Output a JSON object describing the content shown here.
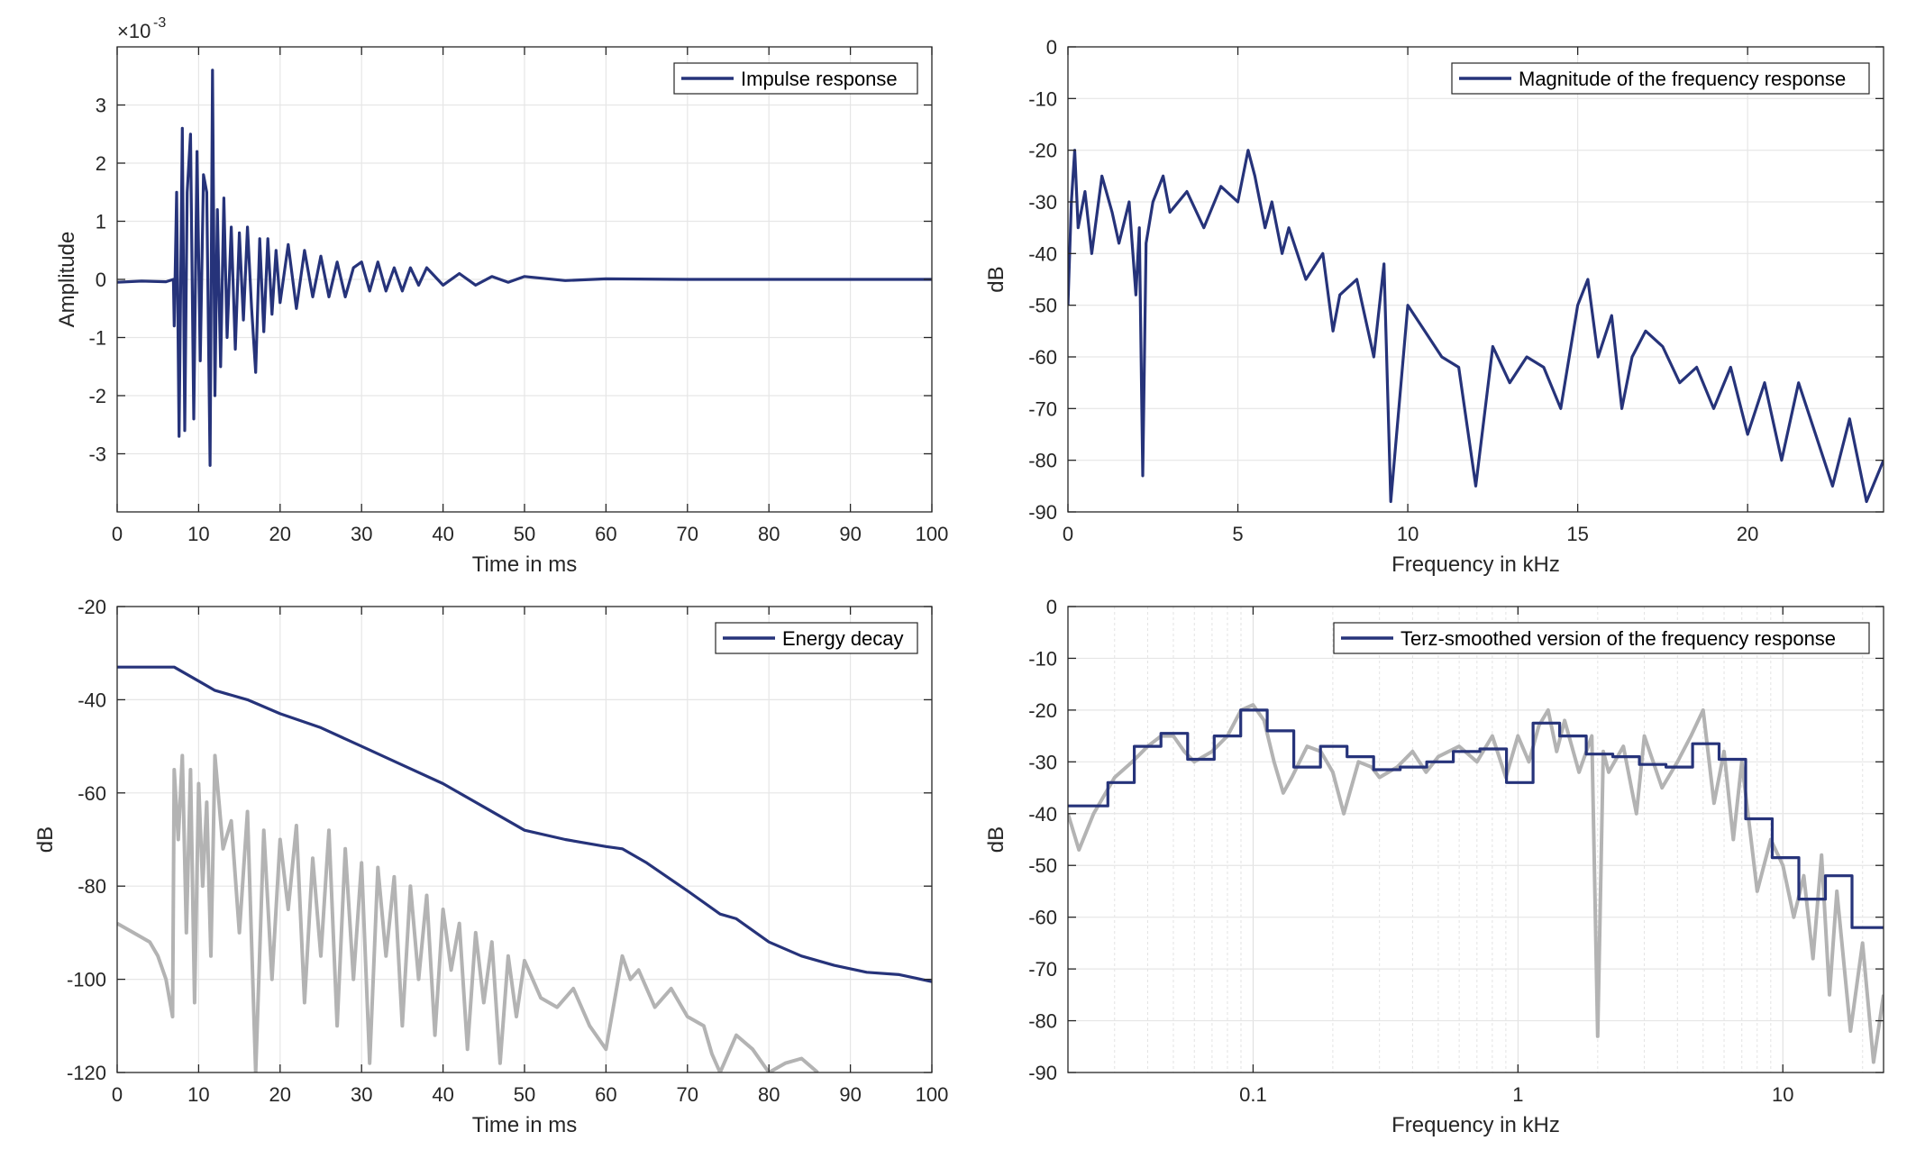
{
  "colors": {
    "series": "#26337a",
    "gray": "#b3b3b3",
    "grid": "#e6e6e6",
    "axis": "#262626"
  },
  "chart_data": [
    {
      "type": "line",
      "xlabel": "Time in ms",
      "ylabel": "Amplitude",
      "exponent_label": "×10",
      "exponent_power": "-3",
      "xlim": [
        0,
        100
      ],
      "ylim": [
        -0.004,
        0.004
      ],
      "xticks": [
        0,
        10,
        20,
        30,
        40,
        50,
        60,
        70,
        80,
        90,
        100
      ],
      "xtick_labels": [
        "0",
        "10",
        "20",
        "30",
        "40",
        "50",
        "60",
        "70",
        "80",
        "90",
        "100"
      ],
      "yticks": [
        -0.003,
        -0.002,
        -0.001,
        0,
        0.001,
        0.002,
        0.003
      ],
      "ytick_labels": [
        "-3",
        "-2",
        "-1",
        "0",
        "1",
        "2",
        "3"
      ],
      "grid": true,
      "legend": "top-right",
      "series": [
        {
          "name": "Impulse response",
          "color": "#26337a",
          "x": [
            0,
            3,
            6,
            6.9,
            7,
            7.3,
            7.6,
            8.0,
            8.3,
            8.6,
            9.0,
            9.4,
            9.8,
            10.2,
            10.6,
            11.0,
            11.4,
            11.7,
            12.0,
            12.3,
            12.7,
            13.1,
            13.5,
            14.0,
            14.5,
            15.0,
            15.5,
            16.0,
            16.5,
            17.0,
            17.5,
            18.0,
            18.5,
            19.0,
            19.5,
            20.0,
            21,
            22,
            23,
            24,
            25,
            26,
            27,
            28,
            29,
            30,
            31,
            32,
            33,
            34,
            35,
            36,
            37,
            38,
            40,
            42,
            44,
            46,
            48,
            50,
            55,
            60,
            70,
            80,
            90,
            100
          ],
          "y": [
            -5e-05,
            -3e-05,
            -4e-05,
            0,
            -0.0008,
            0.0015,
            -0.0027,
            0.0026,
            -0.0026,
            0.0015,
            0.0025,
            -0.0024,
            0.0022,
            -0.0014,
            0.0018,
            0.0015,
            -0.0032,
            0.0036,
            -0.002,
            0.0012,
            -0.0015,
            0.0014,
            -0.001,
            0.0009,
            -0.0012,
            0.0008,
            -0.0007,
            0.0009,
            -0.0005,
            -0.0016,
            0.0007,
            -0.0009,
            0.0007,
            -0.0006,
            0.0005,
            -0.0004,
            0.0006,
            -0.0005,
            0.0005,
            -0.0003,
            0.0004,
            -0.0003,
            0.0003,
            -0.0003,
            0.0002,
            0.0003,
            -0.0002,
            0.0003,
            -0.0002,
            0.0002,
            -0.0002,
            0.0002,
            -0.0001,
            0.0002,
            -0.0001,
            0.0001,
            -0.0001,
            5e-05,
            -5e-05,
            5e-05,
            -2e-05,
            1e-05,
            0,
            0,
            0,
            0
          ]
        }
      ]
    },
    {
      "type": "line",
      "xlabel": "Frequency in kHz",
      "ylabel": "dB",
      "xlim": [
        0,
        24
      ],
      "ylim": [
        -90,
        0
      ],
      "xticks": [
        0,
        5,
        10,
        15,
        20
      ],
      "xtick_labels": [
        "0",
        "5",
        "10",
        "15",
        "20"
      ],
      "yticks": [
        0,
        -10,
        -20,
        -30,
        -40,
        -50,
        -60,
        -70,
        -80,
        -90
      ],
      "ytick_labels": [
        "0",
        "-10",
        "-20",
        "-30",
        "-40",
        "-50",
        "-60",
        "-70",
        "-80",
        "-90"
      ],
      "grid": true,
      "legend": "top-right",
      "series": [
        {
          "name": "Magnitude of the frequency response",
          "color": "#26337a",
          "x": [
            0,
            0.1,
            0.2,
            0.3,
            0.5,
            0.7,
            1.0,
            1.3,
            1.5,
            1.8,
            2.0,
            2.1,
            2.2,
            2.3,
            2.5,
            2.8,
            3.0,
            3.5,
            4.0,
            4.5,
            5.0,
            5.3,
            5.5,
            5.8,
            6.0,
            6.3,
            6.5,
            7.0,
            7.5,
            7.8,
            8.0,
            8.5,
            9.0,
            9.3,
            9.5,
            10.0,
            10.5,
            11.0,
            11.5,
            12.0,
            12.5,
            13.0,
            13.5,
            14.0,
            14.5,
            15.0,
            15.3,
            15.6,
            16.0,
            16.3,
            16.6,
            17.0,
            17.5,
            18.0,
            18.5,
            19.0,
            19.5,
            20.0,
            20.5,
            21.0,
            21.5,
            22.0,
            22.5,
            23.0,
            23.5,
            24.0
          ],
          "y": [
            -50,
            -30,
            -20,
            -35,
            -28,
            -40,
            -25,
            -32,
            -38,
            -30,
            -48,
            -35,
            -83,
            -38,
            -30,
            -25,
            -32,
            -28,
            -35,
            -27,
            -30,
            -20,
            -25,
            -35,
            -30,
            -40,
            -35,
            -45,
            -40,
            -55,
            -48,
            -45,
            -60,
            -42,
            -88,
            -50,
            -55,
            -60,
            -62,
            -85,
            -58,
            -65,
            -60,
            -62,
            -70,
            -50,
            -45,
            -60,
            -52,
            -70,
            -60,
            -55,
            -58,
            -65,
            -62,
            -70,
            -62,
            -75,
            -65,
            -80,
            -65,
            -75,
            -85,
            -72,
            -88,
            -80
          ]
        }
      ]
    },
    {
      "type": "line",
      "xlabel": "Time in ms",
      "ylabel": "dB",
      "xlim": [
        0,
        100
      ],
      "ylim": [
        -120,
        -20
      ],
      "xticks": [
        0,
        10,
        20,
        30,
        40,
        50,
        60,
        70,
        80,
        90,
        100
      ],
      "xtick_labels": [
        "0",
        "10",
        "20",
        "30",
        "40",
        "50",
        "60",
        "70",
        "80",
        "90",
        "100"
      ],
      "yticks": [
        -20,
        -40,
        -60,
        -80,
        -100,
        -120
      ],
      "ytick_labels": [
        "-20",
        "-40",
        "-60",
        "-80",
        "-100",
        "-120"
      ],
      "grid": true,
      "legend": "top-right",
      "series": [
        {
          "name": "Energy decay",
          "color": "#26337a",
          "x": [
            0,
            7,
            10,
            12,
            16,
            20,
            25,
            30,
            35,
            40,
            45,
            50,
            55,
            60,
            62,
            65,
            70,
            74,
            76,
            80,
            84,
            88,
            92,
            96,
            100
          ],
          "y": [
            -33,
            -33,
            -36,
            -38,
            -40,
            -43,
            -46,
            -50,
            -54,
            -58,
            -63,
            -68,
            -70,
            -71.5,
            -72,
            -75,
            -81,
            -86,
            -87,
            -92,
            -95,
            -97,
            -98.5,
            -99,
            -100.5
          ]
        },
        {
          "name": "",
          "color": "#b3b3b3",
          "x": [
            0,
            2,
            4,
            5,
            6,
            6.8,
            7,
            7.5,
            8,
            8.5,
            9,
            9.5,
            10,
            10.5,
            11,
            11.5,
            12,
            13,
            14,
            15,
            16,
            17,
            18,
            19,
            20,
            21,
            22,
            23,
            24,
            25,
            26,
            27,
            28,
            29,
            30,
            31,
            32,
            33,
            34,
            35,
            36,
            37,
            38,
            39,
            40,
            41,
            42,
            43,
            44,
            45,
            46,
            47,
            48,
            49,
            50,
            52,
            54,
            56,
            58,
            60,
            62,
            63,
            64,
            66,
            68,
            70,
            72,
            73,
            74,
            76,
            78,
            80,
            82,
            84,
            86
          ],
          "y": [
            -88,
            -90,
            -92,
            -95,
            -100,
            -108,
            -55,
            -70,
            -52,
            -90,
            -55,
            -105,
            -58,
            -80,
            -62,
            -95,
            -52,
            -72,
            -66,
            -90,
            -64,
            -120,
            -68,
            -100,
            -70,
            -85,
            -67,
            -105,
            -74,
            -95,
            -68,
            -110,
            -72,
            -100,
            -75,
            -118,
            -76,
            -95,
            -78,
            -110,
            -80,
            -100,
            -82,
            -112,
            -85,
            -98,
            -88,
            -115,
            -90,
            -105,
            -92,
            -118,
            -95,
            -108,
            -96,
            -104,
            -106,
            -102,
            -110,
            -115,
            -95,
            -100,
            -98,
            -106,
            -102,
            -108,
            -110,
            -116,
            -120,
            -112,
            -115,
            -120,
            -118,
            -117,
            -120
          ]
        }
      ]
    },
    {
      "type": "line",
      "xlabel": "Frequency in kHz",
      "ylabel": "dB",
      "xscale": "log",
      "xlim": [
        0.02,
        24
      ],
      "ylim": [
        -90,
        0
      ],
      "xticks": [
        0.1,
        1,
        10
      ],
      "xtick_labels": [
        "0.1",
        "1",
        "10"
      ],
      "yticks": [
        0,
        -10,
        -20,
        -30,
        -40,
        -50,
        -60,
        -70,
        -80,
        -90
      ],
      "ytick_labels": [
        "0",
        "-10",
        "-20",
        "-30",
        "-40",
        "-50",
        "-60",
        "-70",
        "-80",
        "-90"
      ],
      "grid": true,
      "legend": "top-right",
      "series": [
        {
          "name": "Terz-smoothed version of the frequency response",
          "color": "#26337a",
          "step": true,
          "x": [
            0.02,
            0.0283,
            0.0356,
            0.0449,
            0.0566,
            0.0713,
            0.0898,
            0.1131,
            0.1425,
            0.1796,
            0.2263,
            0.2851,
            0.3592,
            0.4525,
            0.5702,
            0.7184,
            0.9051,
            1.1404,
            1.4368,
            1.8102,
            2.2807,
            2.8736,
            3.6204,
            4.5613,
            5.7469,
            7.2406,
            9.1226,
            11.494,
            14.481,
            18.245,
            24
          ],
          "y": [
            -38.5,
            -34,
            -27,
            -24.5,
            -29.5,
            -25,
            -20,
            -24,
            -31,
            -27,
            -29,
            -31.5,
            -31,
            -30,
            -28,
            -27.5,
            -34,
            -22.5,
            -25,
            -28.5,
            -29,
            -30.5,
            -31,
            -26.5,
            -29.5,
            -41,
            -48.5,
            -56.5,
            -52,
            -62,
            -62
          ]
        },
        {
          "name": "",
          "color": "#b3b3b3",
          "x": [
            0.02,
            0.022,
            0.025,
            0.03,
            0.035,
            0.04,
            0.045,
            0.05,
            0.055,
            0.06,
            0.07,
            0.08,
            0.09,
            0.1,
            0.11,
            0.12,
            0.13,
            0.14,
            0.16,
            0.18,
            0.2,
            0.22,
            0.25,
            0.28,
            0.3,
            0.35,
            0.4,
            0.45,
            0.5,
            0.6,
            0.7,
            0.8,
            0.9,
            1.0,
            1.1,
            1.2,
            1.3,
            1.4,
            1.5,
            1.7,
            1.9,
            2.0,
            2.1,
            2.2,
            2.5,
            2.8,
            3.0,
            3.5,
            4.0,
            4.5,
            5.0,
            5.5,
            6.0,
            6.5,
            7.0,
            8.0,
            9.0,
            10.0,
            11.0,
            12.0,
            13.0,
            14.0,
            15.0,
            16.0,
            18.0,
            20.0,
            22.0,
            24.0
          ],
          "y": [
            -40,
            -47,
            -40,
            -33,
            -30,
            -27,
            -25,
            -25,
            -28,
            -30,
            -28,
            -25,
            -20,
            -19,
            -22,
            -30,
            -36,
            -33,
            -27,
            -28,
            -32,
            -40,
            -30,
            -31,
            -33,
            -31,
            -28,
            -32,
            -29,
            -27,
            -30,
            -25,
            -33,
            -25,
            -30,
            -23,
            -20,
            -28,
            -22,
            -32,
            -25,
            -83,
            -28,
            -32,
            -27,
            -40,
            -25,
            -35,
            -30,
            -25,
            -20,
            -38,
            -28,
            -45,
            -30,
            -55,
            -45,
            -50,
            -60,
            -52,
            -68,
            -48,
            -75,
            -55,
            -82,
            -65,
            -88,
            -75
          ]
        }
      ]
    }
  ]
}
